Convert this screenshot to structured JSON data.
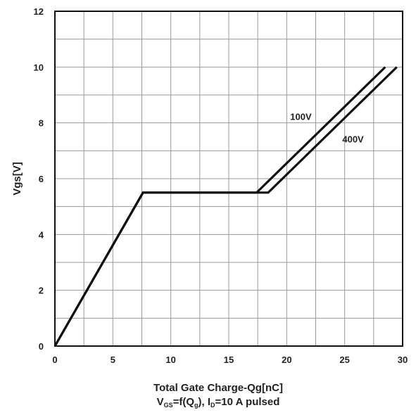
{
  "chart_data": {
    "type": "line",
    "xlabel": "Total Gate Charge-Qg[nC]",
    "xlabel2": {
      "p1": "V",
      "s1": "GS",
      "p2": "=f(Q",
      "s2": "g",
      "p3": "), I",
      "s3": "D",
      "p4": "=10 A  pulsed"
    },
    "ylabel": "Vgs[V]",
    "xlim": [
      0,
      30
    ],
    "ylim": [
      0,
      12
    ],
    "xticks": [
      0,
      5,
      10,
      15,
      20,
      25,
      30
    ],
    "yticks": [
      0,
      2,
      4,
      6,
      8,
      10,
      12
    ],
    "grid": true,
    "series": [
      {
        "name": "100V",
        "x": [
          0,
          7.6,
          17.4,
          28.5
        ],
        "y": [
          0,
          5.5,
          5.5,
          10
        ]
      },
      {
        "name": "400V",
        "x": [
          0,
          7.6,
          18.4,
          29.5
        ],
        "y": [
          0,
          5.5,
          5.5,
          10
        ]
      }
    ],
    "annotations": [
      {
        "text": "100V",
        "x": 20.3,
        "y": 8.1
      },
      {
        "text": "400V",
        "x": 24.8,
        "y": 7.3
      }
    ]
  }
}
